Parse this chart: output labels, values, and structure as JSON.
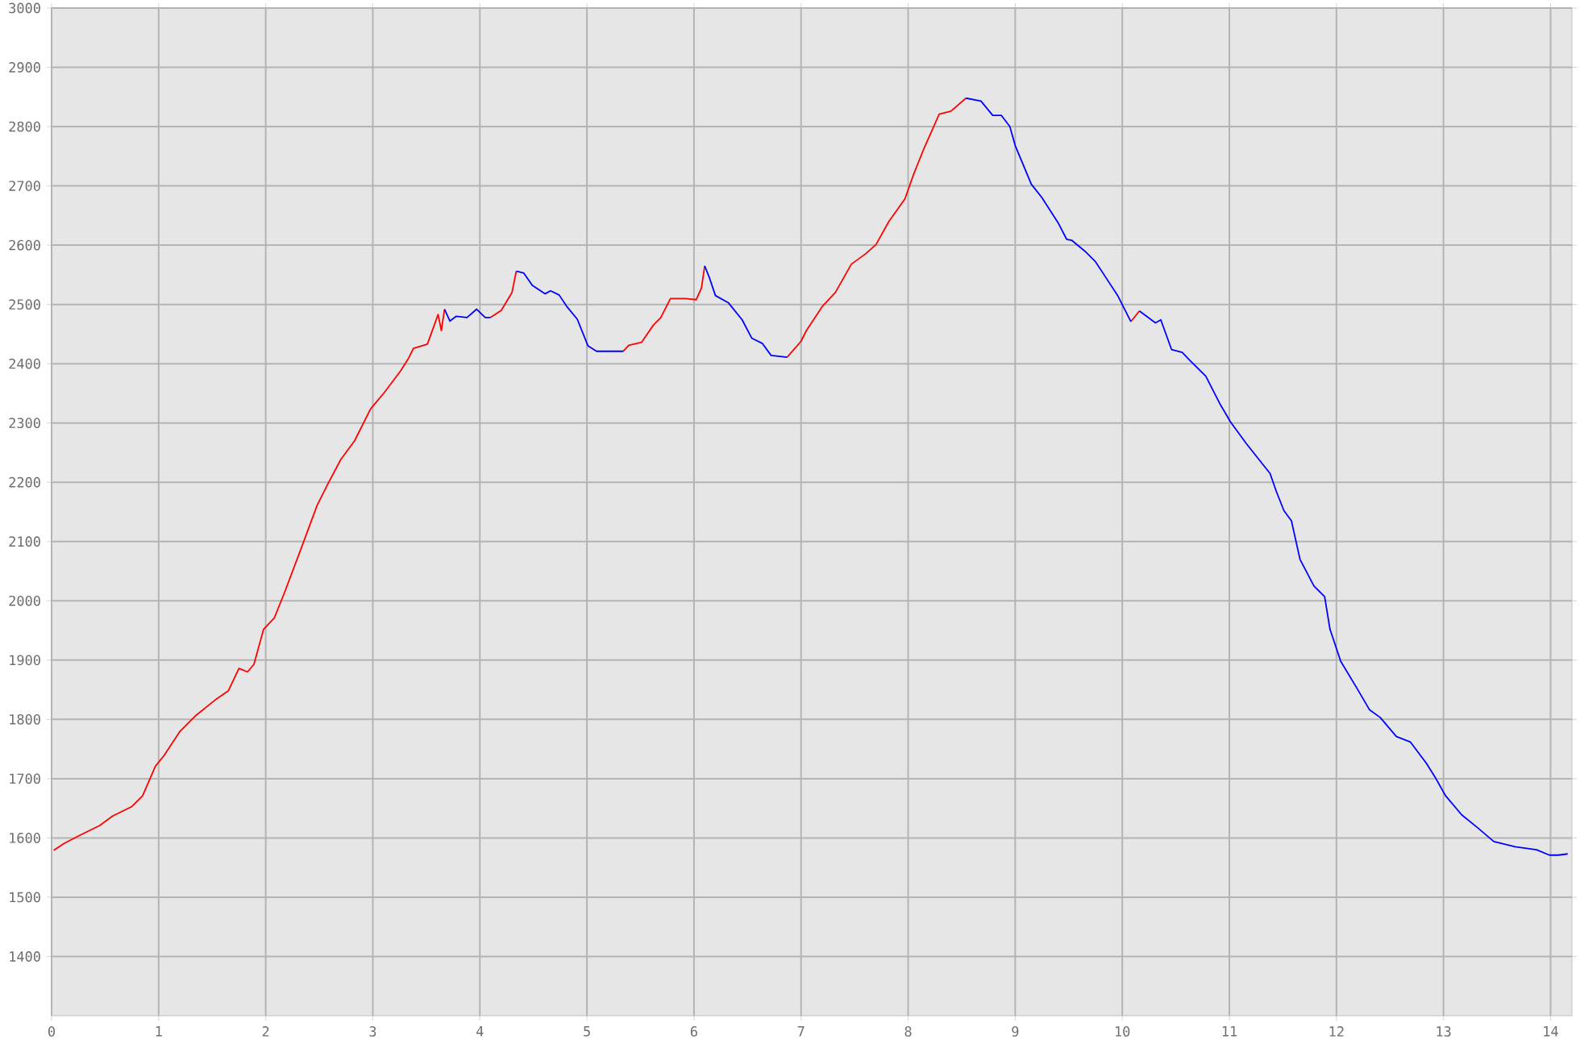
{
  "chart_data": {
    "type": "line",
    "xlim": [
      0,
      14.2
    ],
    "ylim": [
      1300,
      3000
    ],
    "xticks": [
      0,
      1,
      2,
      3,
      4,
      5,
      6,
      7,
      8,
      9,
      10,
      11,
      12,
      13,
      14
    ],
    "yticks": [
      1400,
      1500,
      1600,
      1700,
      1800,
      1900,
      2000,
      2100,
      2200,
      2300,
      2400,
      2500,
      2600,
      2700,
      2800,
      2900,
      3000
    ],
    "grid": true,
    "legend": false,
    "marker": "none",
    "line_style": "solid",
    "series": [
      {
        "color": "#ff0000",
        "x": [
          0.02,
          0.12,
          0.27,
          0.45,
          0.57,
          0.75,
          0.85,
          0.97,
          1.05,
          1.2,
          1.35,
          1.53,
          1.65,
          1.75,
          1.83,
          1.89,
          1.98,
          2.08,
          2.18,
          2.33,
          2.48,
          2.58,
          2.7,
          2.83,
          2.98,
          3.11,
          3.26,
          3.33,
          3.38,
          3.51,
          3.61,
          3.64,
          3.67,
          null,
          4.1,
          4.2,
          4.3,
          4.34,
          null,
          5.34,
          5.39,
          5.51,
          5.62,
          5.69,
          5.78,
          5.92,
          6.02,
          6.07,
          6.1,
          null,
          6.87,
          7.0,
          7.05,
          7.2,
          7.32,
          7.47,
          7.6,
          7.7,
          7.82,
          7.97,
          8.05,
          8.15,
          8.29,
          8.4,
          8.54,
          null,
          10.08,
          10.16
        ],
        "values": [
          1579,
          1591,
          1605,
          1621,
          1637,
          1653,
          1671,
          1721,
          1739,
          1780,
          1807,
          1833,
          1848,
          1886,
          1880,
          1893,
          1952,
          1971,
          2016,
          2088,
          2161,
          2197,
          2238,
          2270,
          2324,
          2352,
          2388,
          2408,
          2426,
          2433,
          2483,
          2456,
          2492,
          null,
          2478,
          2490,
          2520,
          2556,
          null,
          2421,
          2431,
          2436,
          2465,
          2478,
          2510,
          2510,
          2508,
          2528,
          2565,
          null,
          2411,
          2438,
          2456,
          2497,
          2520,
          2568,
          2585,
          2601,
          2640,
          2678,
          2719,
          2764,
          2821,
          2826,
          2848,
          null,
          2471,
          2489
        ]
      },
      {
        "color": "#0000ff",
        "x": [
          3.67,
          3.72,
          3.78,
          3.88,
          3.97,
          4.05,
          4.1,
          null,
          4.34,
          4.41,
          4.49,
          4.61,
          4.66,
          4.74,
          4.81,
          4.91,
          5.01,
          5.09,
          5.34,
          null,
          6.1,
          6.14,
          6.2,
          6.32,
          6.45,
          6.54,
          6.64,
          6.72,
          6.87,
          null,
          8.54,
          8.68,
          8.79,
          8.87,
          8.95,
          9.0,
          9.15,
          9.25,
          9.4,
          9.48,
          9.53,
          9.65,
          9.75,
          9.83,
          9.96,
          10.08,
          null,
          10.16,
          10.31,
          10.36,
          10.46,
          10.56,
          10.63,
          10.78,
          10.91,
          11.01,
          11.16,
          11.38,
          11.44,
          11.51,
          11.58,
          11.66,
          11.79,
          11.89,
          11.94,
          12.04,
          12.19,
          12.31,
          12.41,
          12.56,
          12.69,
          12.84,
          12.92,
          13.02,
          13.17,
          13.32,
          13.47,
          13.67,
          13.87,
          13.99,
          14.07,
          14.16
        ],
        "values": [
          2492,
          2472,
          2480,
          2478,
          2492,
          2478,
          2478,
          null,
          2556,
          2553,
          2532,
          2518,
          2523,
          2516,
          2497,
          2475,
          2430,
          2421,
          2421,
          null,
          2565,
          2547,
          2515,
          2503,
          2474,
          2443,
          2434,
          2414,
          2411,
          null,
          2848,
          2843,
          2819,
          2819,
          2800,
          2768,
          2703,
          2680,
          2638,
          2610,
          2608,
          2590,
          2572,
          2550,
          2514,
          2471,
          null,
          2489,
          2469,
          2474,
          2424,
          2419,
          2406,
          2379,
          2333,
          2302,
          2265,
          2215,
          2184,
          2152,
          2135,
          2070,
          2025,
          2007,
          1952,
          1898,
          1853,
          1816,
          1803,
          1771,
          1762,
          1726,
          1703,
          1671,
          1639,
          1617,
          1594,
          1585,
          1580,
          1571,
          1571,
          1573
        ]
      }
    ]
  }
}
